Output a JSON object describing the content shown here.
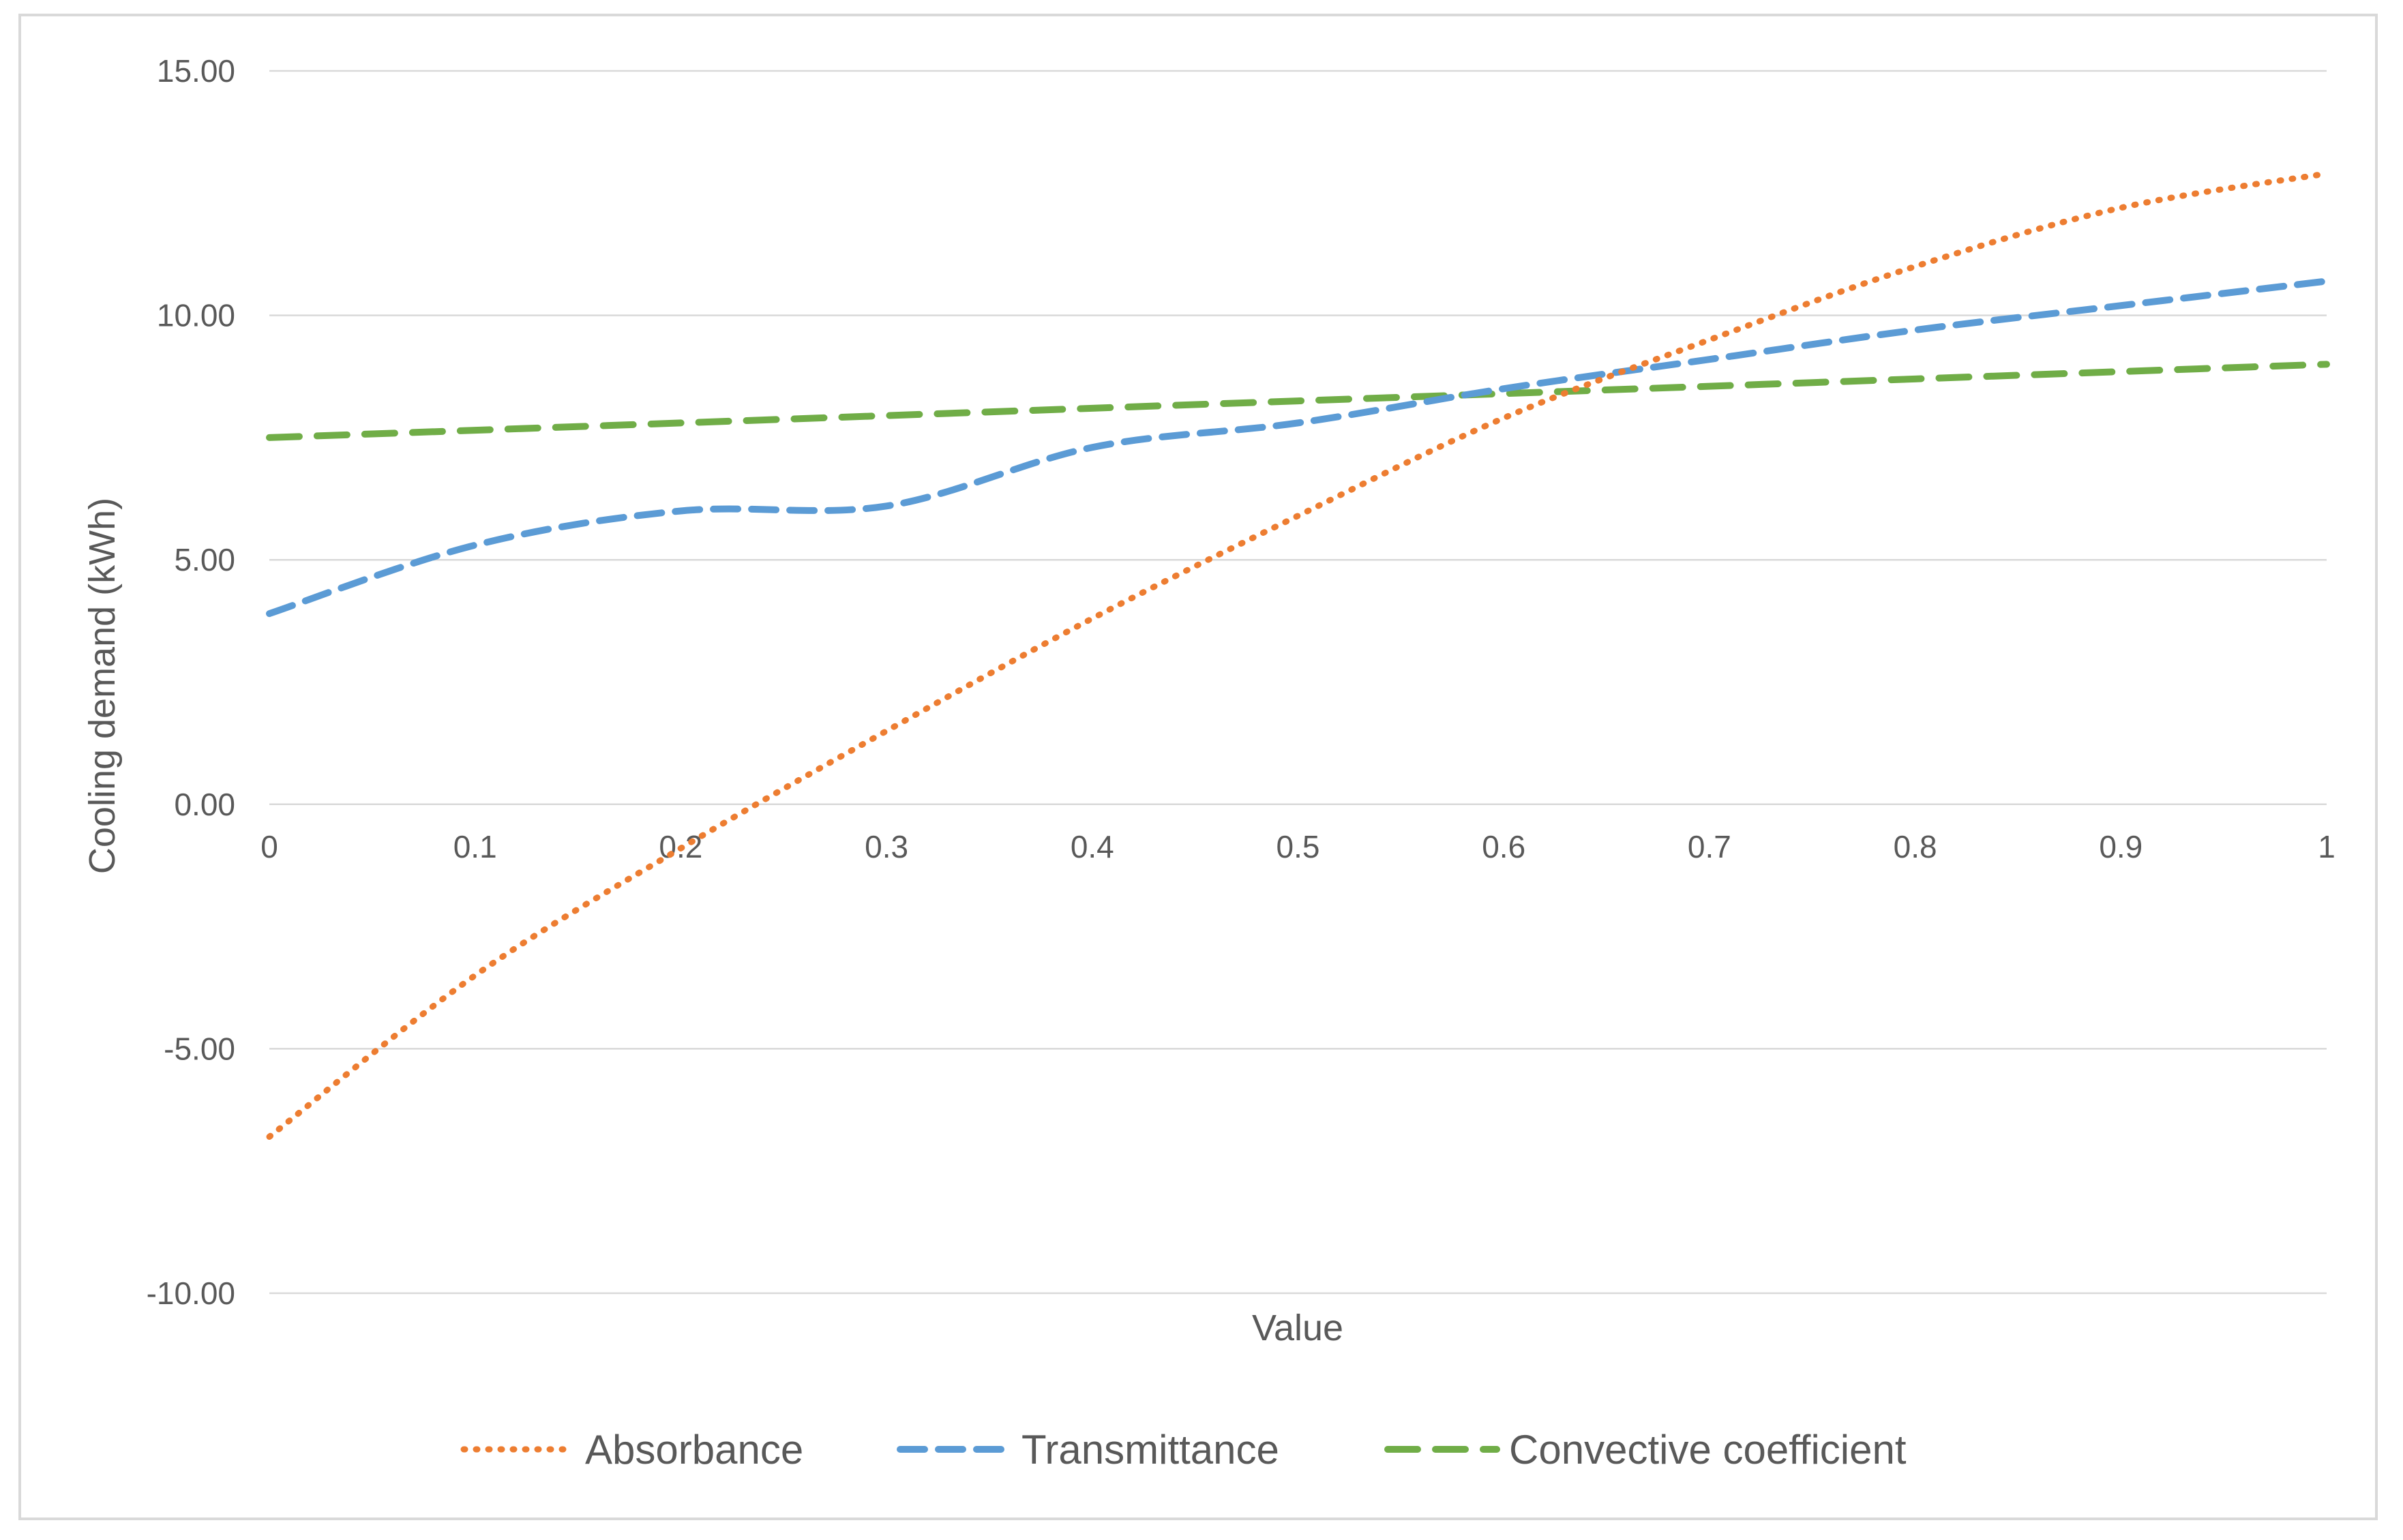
{
  "chart_data": {
    "type": "line",
    "title": "",
    "xlabel": "Value",
    "ylabel": "Cooling demand (kWh)",
    "xlim": [
      0,
      1
    ],
    "ylim": [
      -10,
      15
    ],
    "grid": true,
    "legend_position": "bottom",
    "x": [
      0,
      0.1,
      0.2,
      0.3,
      0.4,
      0.5,
      0.6,
      0.7,
      0.8,
      0.9,
      1
    ],
    "x_tick_labels": [
      "0",
      "0.1",
      "0.2",
      "0.3",
      "0.4",
      "0.5",
      "0.6",
      "0.7",
      "0.8",
      "0.9",
      "1"
    ],
    "y_ticks": [
      15,
      10,
      5,
      0,
      -5,
      -10
    ],
    "y_tick_labels": [
      "15.00",
      "10.00",
      "5.00",
      "0.00",
      "-5.00",
      "-10.00"
    ],
    "series": [
      {
        "name": "Absorbance",
        "color": "#ed7d31",
        "style": "dotted",
        "values": [
          -6.8,
          -3.5,
          -0.9,
          1.5,
          3.8,
          5.9,
          7.9,
          9.5,
          11.0,
          12.2,
          12.9
        ]
      },
      {
        "name": "Transmittance",
        "color": "#5b9bd5",
        "style": "dashed",
        "values": [
          3.9,
          5.3,
          6.0,
          6.1,
          7.3,
          7.8,
          8.5,
          9.1,
          9.7,
          10.2,
          10.7
        ]
      },
      {
        "name": "Convective coefficient",
        "color": "#70ad47",
        "style": "long-dashed",
        "values": [
          7.5,
          7.65,
          7.8,
          7.95,
          8.1,
          8.25,
          8.4,
          8.55,
          8.7,
          8.85,
          9.0
        ]
      }
    ]
  }
}
